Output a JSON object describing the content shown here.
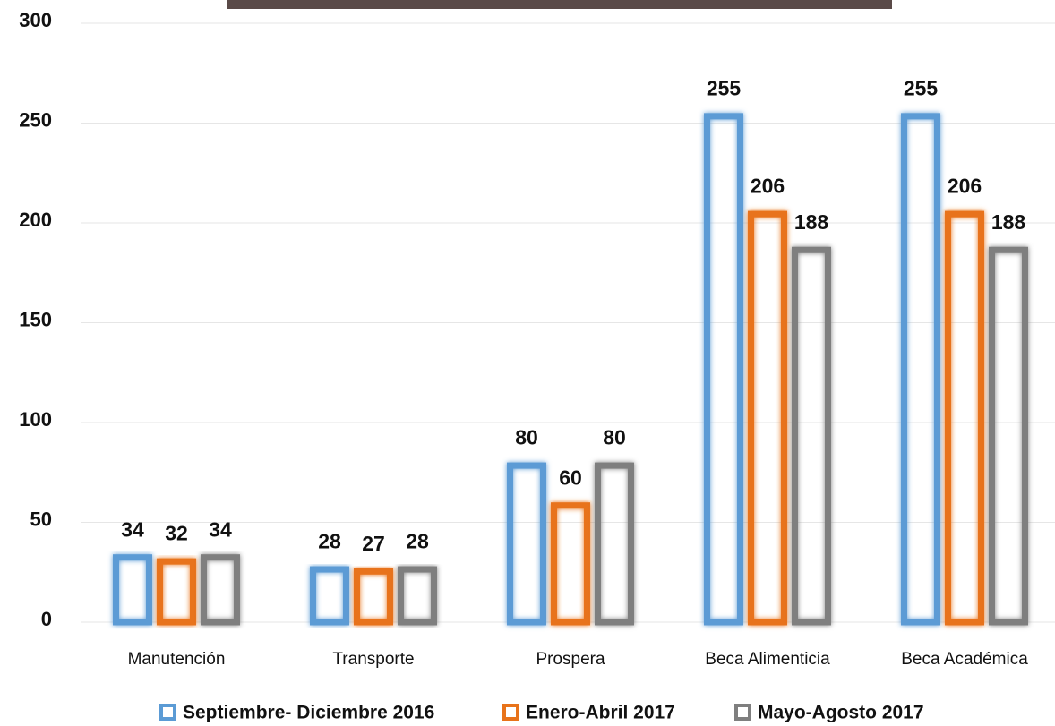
{
  "chart_data": {
    "type": "bar",
    "categories": [
      "Manutención",
      "Transporte",
      "Prospera",
      "Beca Alimenticia",
      "Beca Académica"
    ],
    "series": [
      {
        "name": "Septiembre- Diciembre 2016",
        "color": "#5b9bd5",
        "values": [
          34,
          28,
          80,
          255,
          255
        ]
      },
      {
        "name": "Enero-Abril 2017",
        "color": "#e8731a",
        "values": [
          32,
          27,
          60,
          206,
          206
        ]
      },
      {
        "name": "Mayo-Agosto 2017",
        "color": "#7f7f7f",
        "values": [
          34,
          28,
          80,
          188,
          188
        ]
      }
    ],
    "ylim": [
      0,
      300
    ],
    "yticks": [
      0,
      50,
      100,
      150,
      200,
      250,
      300
    ],
    "grid": true
  }
}
